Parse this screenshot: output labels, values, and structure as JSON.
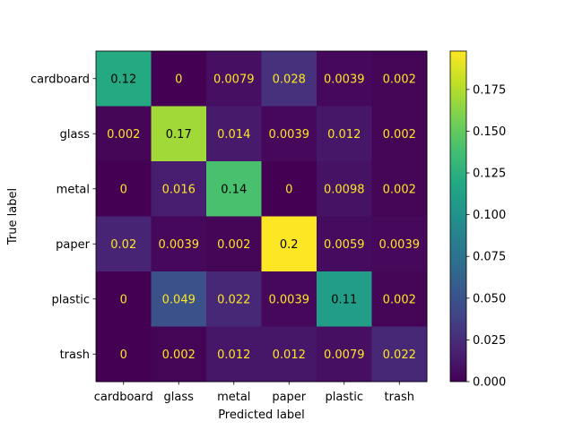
{
  "chart_data": {
    "type": "heatmap",
    "xlabel": "Predicted label",
    "ylabel": "True label",
    "x_categories": [
      "cardboard",
      "glass",
      "metal",
      "paper",
      "plastic",
      "trash"
    ],
    "y_categories": [
      "cardboard",
      "glass",
      "metal",
      "paper",
      "plastic",
      "trash"
    ],
    "values": [
      [
        0.12,
        0,
        0.0079,
        0.028,
        0.0039,
        0.002
      ],
      [
        0.002,
        0.17,
        0.014,
        0.0039,
        0.012,
        0.002
      ],
      [
        0,
        0.016,
        0.14,
        0,
        0.0098,
        0.002
      ],
      [
        0.02,
        0.0039,
        0.002,
        0.2,
        0.0059,
        0.0039
      ],
      [
        0,
        0.049,
        0.022,
        0.0039,
        0.11,
        0.002
      ],
      [
        0,
        0.002,
        0.012,
        0.012,
        0.0079,
        0.022
      ]
    ],
    "cell_labels": [
      [
        "0.12",
        "0",
        "0.0079",
        "0.028",
        "0.0039",
        "0.002"
      ],
      [
        "0.002",
        "0.17",
        "0.014",
        "0.0039",
        "0.012",
        "0.002"
      ],
      [
        "0",
        "0.016",
        "0.14",
        "0",
        "0.0098",
        "0.002"
      ],
      [
        "0.02",
        "0.0039",
        "0.002",
        "0.2",
        "0.0059",
        "0.0039"
      ],
      [
        "0",
        "0.049",
        "0.022",
        "0.0039",
        "0.11",
        "0.002"
      ],
      [
        "0",
        "0.002",
        "0.012",
        "0.012",
        "0.0079",
        "0.022"
      ]
    ],
    "colormap": "viridis",
    "vmin": 0,
    "vmax": 0.198,
    "colorbar_ticks": [
      0,
      0.025,
      0.05,
      0.075,
      0.1,
      0.125,
      0.15,
      0.175
    ],
    "colorbar_tick_labels": [
      "0.000",
      "0.025",
      "0.050",
      "0.075",
      "0.100",
      "0.125",
      "0.150",
      "0.175"
    ],
    "text_color_light": "#fde725",
    "text_color_dark": "#000000"
  }
}
